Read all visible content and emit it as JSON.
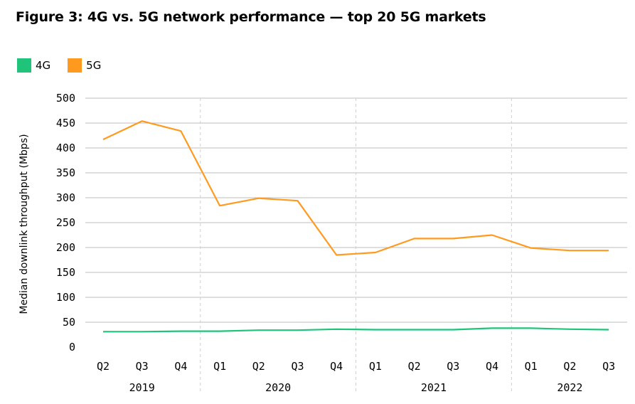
{
  "chart_data": {
    "type": "line",
    "title": "Figure 3: 4G vs. 5G network performance — top 20 5G markets",
    "ylabel": "Median downlink throughput (Mbps)",
    "xlabel": "",
    "ylim": [
      0,
      500
    ],
    "yticks": [
      "0",
      "50",
      "100",
      "150",
      "200",
      "250",
      "300",
      "350",
      "400",
      "450",
      "500"
    ],
    "categories": [
      "Q2",
      "Q3",
      "Q4",
      "Q1",
      "Q2",
      "Q3",
      "Q4",
      "Q1",
      "Q2",
      "Q3",
      "Q4",
      "Q1",
      "Q2",
      "Q3"
    ],
    "years": [
      {
        "label": "2019",
        "start": 0,
        "end": 2
      },
      {
        "label": "2020",
        "start": 3,
        "end": 6
      },
      {
        "label": "2021",
        "start": 7,
        "end": 10
      },
      {
        "label": "2022",
        "start": 11,
        "end": 13
      }
    ],
    "series": [
      {
        "name": "4G",
        "color": "#1fc47a",
        "values": [
          31,
          31,
          32,
          32,
          34,
          34,
          36,
          35,
          35,
          35,
          38,
          38,
          36,
          35
        ]
      },
      {
        "name": "5G",
        "color": "#ff9a1f",
        "values": [
          417,
          454,
          434,
          284,
          299,
          294,
          185,
          190,
          218,
          218,
          225,
          199,
          194,
          194
        ]
      }
    ],
    "grid": true,
    "legend_position": "top-left"
  }
}
